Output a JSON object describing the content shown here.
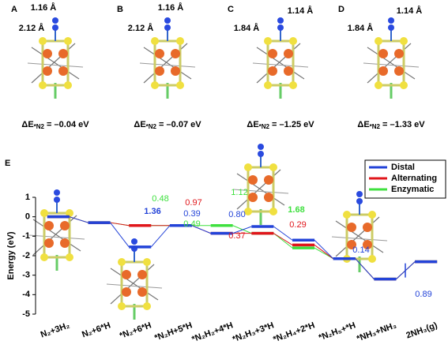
{
  "panels": [
    {
      "label": "A",
      "distances": [
        "1.16 Å",
        "2.12 Å"
      ],
      "energy": {
        "symbol": "ΔE",
        "subscript": "*N2",
        "value": " = –0.04 eV"
      }
    },
    {
      "label": "B",
      "distances": [
        "1.16 Å",
        "2.12 Å"
      ],
      "energy": {
        "symbol": "ΔE",
        "subscript": "*N2",
        "value": " = –0.07 eV"
      }
    },
    {
      "label": "C",
      "distances": [
        "1.14 Å",
        "1.84 Å"
      ],
      "energy": {
        "symbol": "ΔE",
        "subscript": "*N2",
        "value": " = –1.25 eV"
      }
    },
    {
      "label": "D",
      "distances": [
        "1.14 Å",
        "1.84 Å"
      ],
      "energy": {
        "symbol": "ΔE",
        "subscript": "*N2",
        "value": " = –1.33 eV"
      }
    }
  ],
  "chart_data": {
    "type": "line",
    "panel_label": "E",
    "ylabel": "Energy (eV)",
    "categories": [
      "N₂+3H₂",
      "N₂+6*H",
      "*N₂+6*H",
      "*N₂H+5*H",
      "*N₂H₂+4*H",
      "*N₂H₃+3*H",
      "*N₂H₄+2*H",
      "*N₂H₅+*H",
      "*NH₃+NH₃",
      "2NH₃(g)"
    ],
    "ylim": [
      -5,
      1
    ],
    "yticks": [
      -5,
      -4,
      -3,
      -2,
      -1,
      0,
      1
    ],
    "legend": "upper right",
    "series": [
      {
        "name": "Distal",
        "color": "#2343d8",
        "values": [
          0,
          -0.3,
          -1.55,
          -0.45,
          -0.85,
          -0.5,
          -1.2,
          -2.15,
          -3.2,
          -2.31
        ],
        "annotations": [
          "1.36",
          "0.39",
          "0.80",
          "0.14",
          "0.89"
        ]
      },
      {
        "name": "Alternating",
        "color": "#e0161b",
        "values": [
          0,
          -0.3,
          -0.45,
          -0.45,
          -0.85,
          -0.85,
          -1.45,
          -2.15,
          -3.2,
          -2.31
        ],
        "annotations": [
          "0.97",
          "0.37",
          "0.29"
        ]
      },
      {
        "name": "Enzymatic",
        "color": "#3fe03f",
        "values": [
          0,
          -0.3,
          -0.45,
          -0.45,
          -0.45,
          -0.85,
          -1.6,
          -2.15,
          -3.2,
          -2.31
        ],
        "annotations": [
          "0.48",
          "0.49",
          "1.12",
          "1.68"
        ]
      }
    ]
  }
}
